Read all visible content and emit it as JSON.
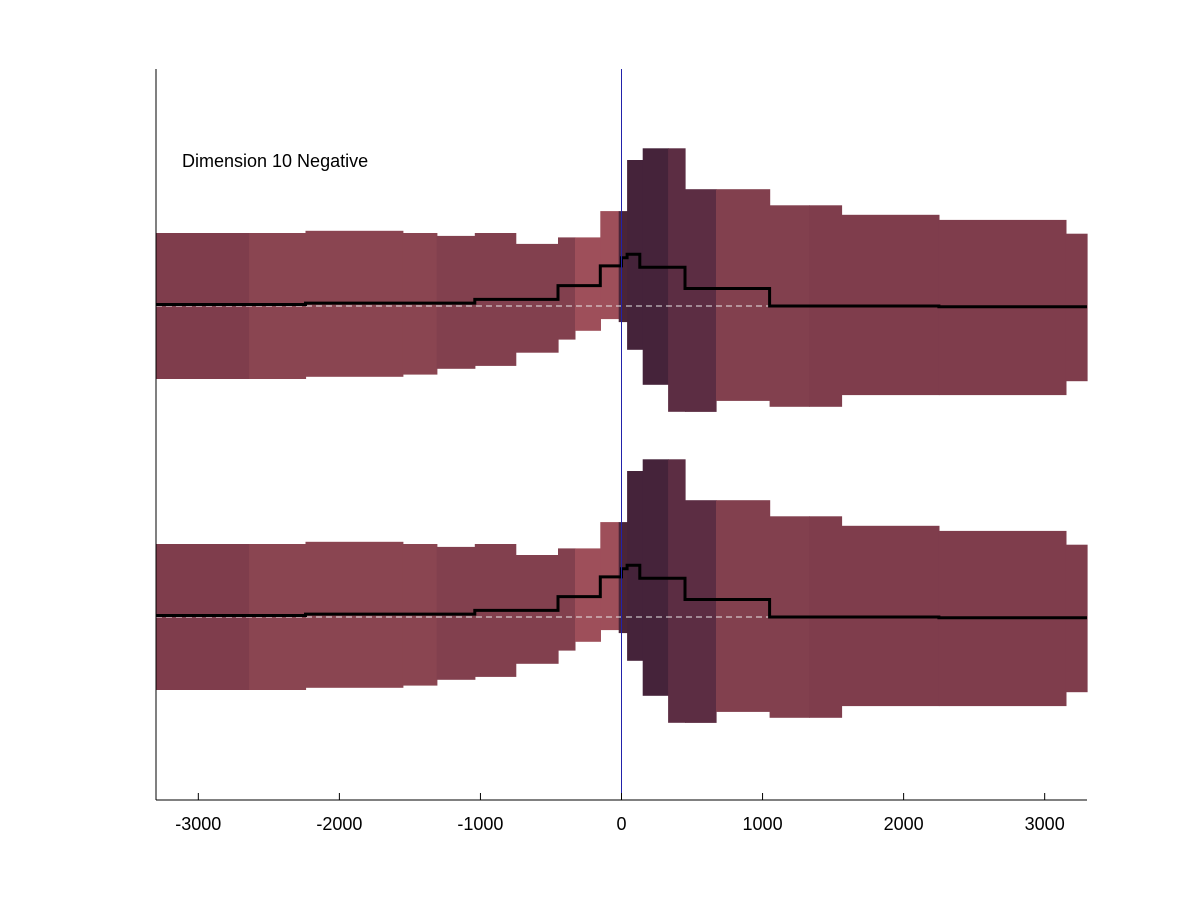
{
  "chart_data": {
    "type": "area",
    "title": "",
    "annotation": "Dimension 10 Negative",
    "xlabel": "",
    "ylabel": "",
    "xlim": [
      -3300,
      3300
    ],
    "xticks": [
      -3000,
      -2000,
      -1000,
      0,
      1000,
      2000,
      3000
    ],
    "xtick_labels": [
      "-3000",
      "-2000",
      "-1000",
      "0",
      "1000",
      "2000",
      "3000"
    ],
    "yticks_shown": false,
    "grid": false,
    "legend": "none",
    "vline_x": 0,
    "colors": {
      "axis": "#000000",
      "vline": "#2222aa",
      "baseline": "#e8e8e8",
      "line": "#000000"
    },
    "panels": [
      {
        "baseline": 0,
        "segments": [
          {
            "x0": -3300,
            "x1": -2640,
            "lo": -1.0,
            "hi": 1.0,
            "color": "#7f3d4c"
          },
          {
            "x0": -2640,
            "x1": -2240,
            "lo": -1.0,
            "hi": 1.0,
            "color": "#8a4551"
          },
          {
            "x0": -2240,
            "x1": -1550,
            "lo": -0.97,
            "hi": 1.03,
            "color": "#8a4551"
          },
          {
            "x0": -1550,
            "x1": -1310,
            "lo": -0.94,
            "hi": 1.0,
            "color": "#8a4551"
          },
          {
            "x0": -1310,
            "x1": -1040,
            "lo": -0.86,
            "hi": 0.96,
            "color": "#82404e"
          },
          {
            "x0": -1040,
            "x1": -750,
            "lo": -0.82,
            "hi": 1.0,
            "color": "#82404e"
          },
          {
            "x0": -750,
            "x1": -450,
            "lo": -0.64,
            "hi": 0.85,
            "color": "#82404e"
          },
          {
            "x0": -450,
            "x1": -330,
            "lo": -0.46,
            "hi": 0.94,
            "color": "#82404e"
          },
          {
            "x0": -330,
            "x1": -150,
            "lo": -0.34,
            "hi": 0.94,
            "color": "#9e4f5a"
          },
          {
            "x0": -150,
            "x1": -20,
            "lo": -0.18,
            "hi": 1.3,
            "color": "#9e4f5a"
          },
          {
            "x0": -20,
            "x1": 40,
            "lo": -0.22,
            "hi": 1.3,
            "color": "#4a2538"
          },
          {
            "x0": 40,
            "x1": 150,
            "lo": -0.6,
            "hi": 2.0,
            "color": "#45233a"
          },
          {
            "x0": 150,
            "x1": 330,
            "lo": -1.08,
            "hi": 2.16,
            "color": "#45233a"
          },
          {
            "x0": 330,
            "x1": 450,
            "lo": -1.45,
            "hi": 2.16,
            "color": "#5c2d43"
          },
          {
            "x0": 450,
            "x1": 670,
            "lo": -1.45,
            "hi": 1.6,
            "color": "#5c2d43"
          },
          {
            "x0": 670,
            "x1": 1050,
            "lo": -1.3,
            "hi": 1.6,
            "color": "#82404e"
          },
          {
            "x0": 1050,
            "x1": 1330,
            "lo": -1.38,
            "hi": 1.38,
            "color": "#82404e"
          },
          {
            "x0": 1330,
            "x1": 1560,
            "lo": -1.38,
            "hi": 1.38,
            "color": "#7f3d4c"
          },
          {
            "x0": 1560,
            "x1": 2250,
            "lo": -1.22,
            "hi": 1.25,
            "color": "#7f3d4c"
          },
          {
            "x0": 2250,
            "x1": 3150,
            "lo": -1.22,
            "hi": 1.18,
            "color": "#7f3d4c"
          },
          {
            "x0": 3150,
            "x1": 3300,
            "lo": -1.03,
            "hi": 0.99,
            "color": "#7f3d4c"
          }
        ],
        "line": {
          "x": [
            -3300,
            -2240,
            -2240,
            -1040,
            -1040,
            -450,
            -450,
            -150,
            -150,
            0,
            0,
            40,
            40,
            130,
            130,
            450,
            450,
            1050,
            1050,
            2250,
            2250,
            3300
          ],
          "y": [
            0.02,
            0.02,
            0.04,
            0.04,
            0.09,
            0.09,
            0.28,
            0.28,
            0.55,
            0.55,
            0.66,
            0.66,
            0.71,
            0.71,
            0.53,
            0.53,
            0.24,
            0.24,
            0.0,
            0.0,
            -0.01,
            -0.01
          ]
        }
      },
      {
        "baseline": 0,
        "segments": [
          {
            "x0": -3300,
            "x1": -2640,
            "lo": -1.0,
            "hi": 1.0,
            "color": "#7f3d4c"
          },
          {
            "x0": -2640,
            "x1": -2240,
            "lo": -1.0,
            "hi": 1.0,
            "color": "#8a4551"
          },
          {
            "x0": -2240,
            "x1": -1550,
            "lo": -0.97,
            "hi": 1.03,
            "color": "#8a4551"
          },
          {
            "x0": -1550,
            "x1": -1310,
            "lo": -0.94,
            "hi": 1.0,
            "color": "#8a4551"
          },
          {
            "x0": -1310,
            "x1": -1040,
            "lo": -0.86,
            "hi": 0.96,
            "color": "#82404e"
          },
          {
            "x0": -1040,
            "x1": -750,
            "lo": -0.82,
            "hi": 1.0,
            "color": "#82404e"
          },
          {
            "x0": -750,
            "x1": -450,
            "lo": -0.64,
            "hi": 0.85,
            "color": "#82404e"
          },
          {
            "x0": -450,
            "x1": -330,
            "lo": -0.46,
            "hi": 0.94,
            "color": "#82404e"
          },
          {
            "x0": -330,
            "x1": -150,
            "lo": -0.34,
            "hi": 0.94,
            "color": "#9e4f5a"
          },
          {
            "x0": -150,
            "x1": -20,
            "lo": -0.18,
            "hi": 1.3,
            "color": "#9e4f5a"
          },
          {
            "x0": -20,
            "x1": 40,
            "lo": -0.22,
            "hi": 1.3,
            "color": "#4a2538"
          },
          {
            "x0": 40,
            "x1": 150,
            "lo": -0.6,
            "hi": 2.0,
            "color": "#45233a"
          },
          {
            "x0": 150,
            "x1": 330,
            "lo": -1.08,
            "hi": 2.16,
            "color": "#45233a"
          },
          {
            "x0": 330,
            "x1": 450,
            "lo": -1.45,
            "hi": 2.16,
            "color": "#5c2d43"
          },
          {
            "x0": 450,
            "x1": 670,
            "lo": -1.45,
            "hi": 1.6,
            "color": "#5c2d43"
          },
          {
            "x0": 670,
            "x1": 1050,
            "lo": -1.3,
            "hi": 1.6,
            "color": "#82404e"
          },
          {
            "x0": 1050,
            "x1": 1330,
            "lo": -1.38,
            "hi": 1.38,
            "color": "#82404e"
          },
          {
            "x0": 1330,
            "x1": 1560,
            "lo": -1.38,
            "hi": 1.38,
            "color": "#7f3d4c"
          },
          {
            "x0": 1560,
            "x1": 2250,
            "lo": -1.22,
            "hi": 1.25,
            "color": "#7f3d4c"
          },
          {
            "x0": 2250,
            "x1": 3150,
            "lo": -1.22,
            "hi": 1.18,
            "color": "#7f3d4c"
          },
          {
            "x0": 3150,
            "x1": 3300,
            "lo": -1.03,
            "hi": 0.99,
            "color": "#7f3d4c"
          }
        ],
        "line": {
          "x": [
            -3300,
            -2240,
            -2240,
            -1040,
            -1040,
            -450,
            -450,
            -150,
            -150,
            0,
            0,
            40,
            40,
            130,
            130,
            450,
            450,
            1050,
            1050,
            2250,
            2250,
            3300
          ],
          "y": [
            0.02,
            0.02,
            0.04,
            0.04,
            0.09,
            0.09,
            0.28,
            0.28,
            0.55,
            0.55,
            0.66,
            0.66,
            0.71,
            0.71,
            0.53,
            0.53,
            0.24,
            0.24,
            0.0,
            0.0,
            -0.01,
            -0.01
          ]
        }
      }
    ]
  }
}
